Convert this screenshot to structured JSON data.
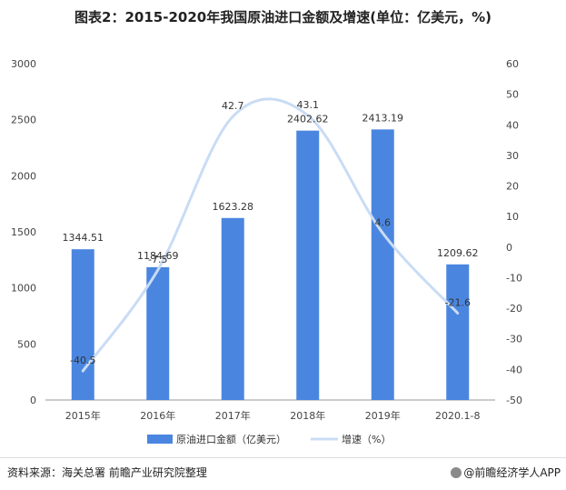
{
  "title": "图表2：2015-2020年我国原油进口金额及增速(单位：亿美元，%)",
  "source": "资料来源：海关总署  前瞻产业研究院整理",
  "brand": "@前瞻经济学人APP",
  "colors": {
    "bar": "#4a86e0",
    "line": "#c9dcf5",
    "axis": "#999999",
    "text": "#333333"
  },
  "chart_data": {
    "type": "bar",
    "categories": [
      "2015年",
      "2016年",
      "2017年",
      "2018年",
      "2019年",
      "2020.1-8"
    ],
    "series": [
      {
        "name": "原油进口金额（亿美元）",
        "type": "bar",
        "axis": "left",
        "values": [
          1344.51,
          1184.69,
          1623.28,
          2402.62,
          2413.19,
          1209.62
        ],
        "labels": [
          "1344.51",
          "1184.69",
          "1623.28",
          "2402.62",
          "2413.19",
          "1209.62"
        ]
      },
      {
        "name": "增速（%）",
        "type": "line",
        "axis": "right",
        "values": [
          -40.5,
          -7.5,
          42.7,
          43.1,
          4.6,
          -21.6
        ],
        "labels": [
          "-40.5",
          "-7.5",
          "42.7",
          "43.1",
          "4.6",
          "-21.6"
        ]
      }
    ],
    "y_left": {
      "min": 0,
      "max": 3000,
      "ticks": [
        "0",
        "500",
        "1000",
        "1500",
        "2000",
        "2500",
        "3000"
      ]
    },
    "y_right": {
      "min": -50,
      "max": 60,
      "ticks": [
        "-50",
        "-40",
        "-30",
        "-20",
        "-10",
        "0",
        "10",
        "20",
        "30",
        "40",
        "50",
        "60"
      ]
    },
    "legend": "bottom",
    "grid": false
  }
}
